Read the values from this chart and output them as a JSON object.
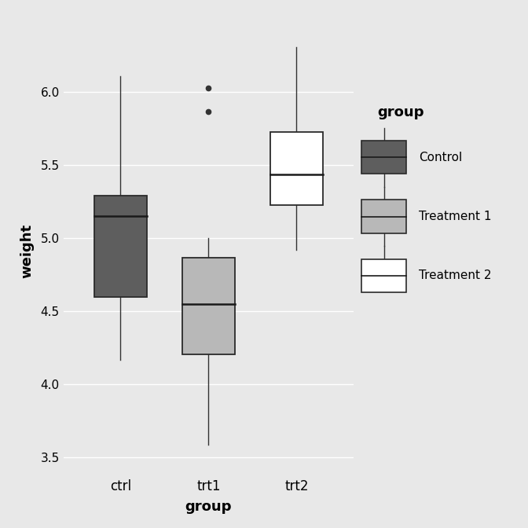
{
  "title": "",
  "xlabel": "group",
  "ylabel": "weight",
  "legend_title": "group",
  "legend_labels": [
    "Control",
    "Treatment 1",
    "Treatment 2"
  ],
  "xtick_labels": [
    "ctrl",
    "trt1",
    "trt2"
  ],
  "outer_bg_color": "#e8e8e8",
  "plot_bg_color": "#e8e8e8",
  "grid_color": "#ffffff",
  "box_colors": [
    "#5e5e5e",
    "#b8b8b8",
    "#ffffff"
  ],
  "box_edge_color": "#2a2a2a",
  "median_color": "#1a1a1a",
  "whisker_color": "#333333",
  "outlier_color": "#333333",
  "ylim": [
    3.38,
    6.45
  ],
  "yticks": [
    3.5,
    4.0,
    4.5,
    5.0,
    5.5,
    6.0
  ],
  "groups": {
    "ctrl": {
      "Q1": 4.6,
      "Q2": 5.15,
      "Q3": 5.29,
      "whisker_low": 4.17,
      "whisker_high": 6.11,
      "outliers": []
    },
    "trt1": {
      "Q1": 4.207,
      "Q2": 4.55,
      "Q3": 4.87,
      "whisker_low": 3.59,
      "whisker_high": 5.0,
      "outliers": [
        5.87,
        6.03
      ]
    },
    "trt2": {
      "Q1": 5.23,
      "Q2": 5.44,
      "Q3": 5.73,
      "whisker_low": 4.92,
      "whisker_high": 6.31,
      "outliers": []
    }
  }
}
